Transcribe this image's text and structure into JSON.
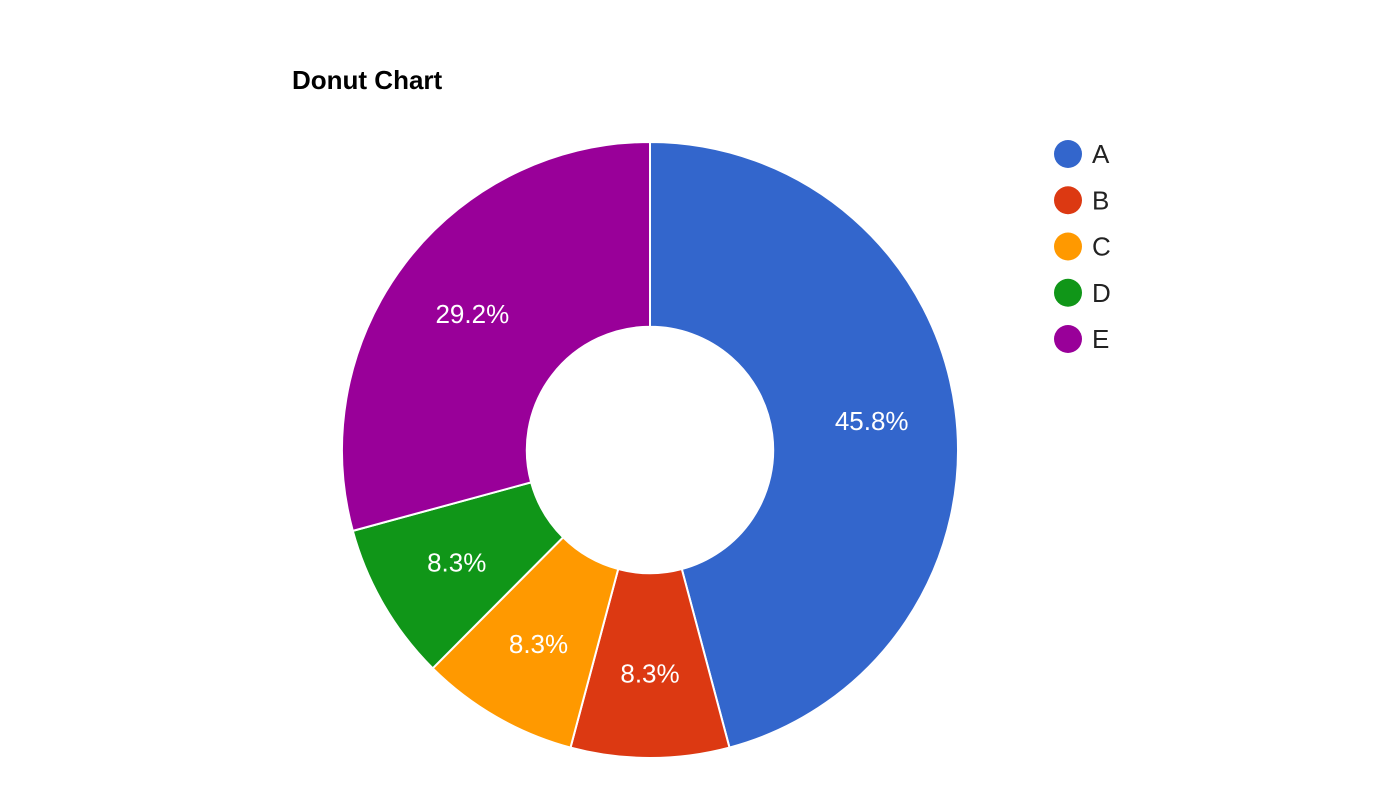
{
  "chart_data": {
    "type": "pie",
    "title": "Donut Chart",
    "categories": [
      "A",
      "B",
      "C",
      "D",
      "E"
    ],
    "values": [
      45.8,
      8.3,
      8.3,
      8.3,
      29.2
    ],
    "value_labels": [
      "45.8%",
      "8.3%",
      "8.3%",
      "8.3%",
      "29.2%"
    ],
    "colors": [
      "#3366cc",
      "#dc3912",
      "#ff9900",
      "#109618",
      "#990099"
    ],
    "hole": 0.4,
    "legend": "right"
  }
}
